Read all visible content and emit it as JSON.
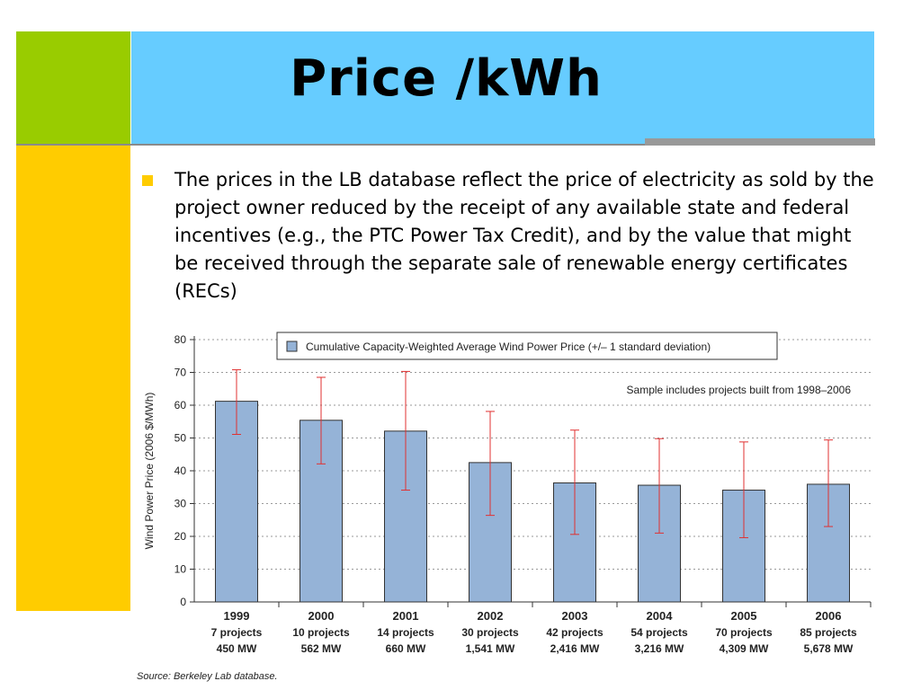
{
  "slide": {
    "title": "Price /kWh",
    "bullet": "The prices in the LB database reflect the price of electricity as sold by the project owner reduced by the receipt of any available state and federal incentives (e.g., the PTC Power Tax Credit), and by the value that might be received through the separate sale of renewable energy certificates (RECs)"
  },
  "colors": {
    "green": "#99cc00",
    "blue": "#66ccff",
    "yellow": "#ffcc00",
    "bar": "#95b3d7",
    "error": "#e03030"
  },
  "chart_data": {
    "type": "bar",
    "ylabel": "Wind Power Price (2006 $/MWh)",
    "ylim": [
      0,
      80
    ],
    "yticks": [
      0,
      10,
      20,
      30,
      40,
      50,
      60,
      70,
      80
    ],
    "grid": true,
    "legend": {
      "position": "top",
      "entries": [
        "Cumulative Capacity-Weighted Average Wind Power Price (+/– 1 standard deviation)"
      ]
    },
    "annotation": "Sample includes projects built from 1998–2006",
    "source": "Source: Berkeley Lab database.",
    "categories": [
      {
        "year": "1999",
        "projects": "7 projects",
        "mw": "450 MW"
      },
      {
        "year": "2000",
        "projects": "10 projects",
        "mw": "562 MW"
      },
      {
        "year": "2001",
        "projects": "14 projects",
        "mw": "660 MW"
      },
      {
        "year": "2002",
        "projects": "30 projects",
        "mw": "1,541 MW"
      },
      {
        "year": "2003",
        "projects": "42 projects",
        "mw": "2,416 MW"
      },
      {
        "year": "2004",
        "projects": "54 projects",
        "mw": "3,216 MW"
      },
      {
        "year": "2005",
        "projects": "70 projects",
        "mw": "4,309 MW"
      },
      {
        "year": "2006",
        "projects": "85 projects",
        "mw": "5,678 MW"
      }
    ],
    "values": [
      61.2,
      55.4,
      52.1,
      42.5,
      36.3,
      35.6,
      34.1,
      35.9
    ],
    "error_low": [
      51.1,
      42.1,
      34.1,
      26.4,
      20.6,
      21.0,
      19.6,
      23.0
    ],
    "error_high": [
      70.8,
      68.5,
      70.3,
      58.1,
      52.4,
      49.8,
      48.8,
      49.4
    ]
  }
}
